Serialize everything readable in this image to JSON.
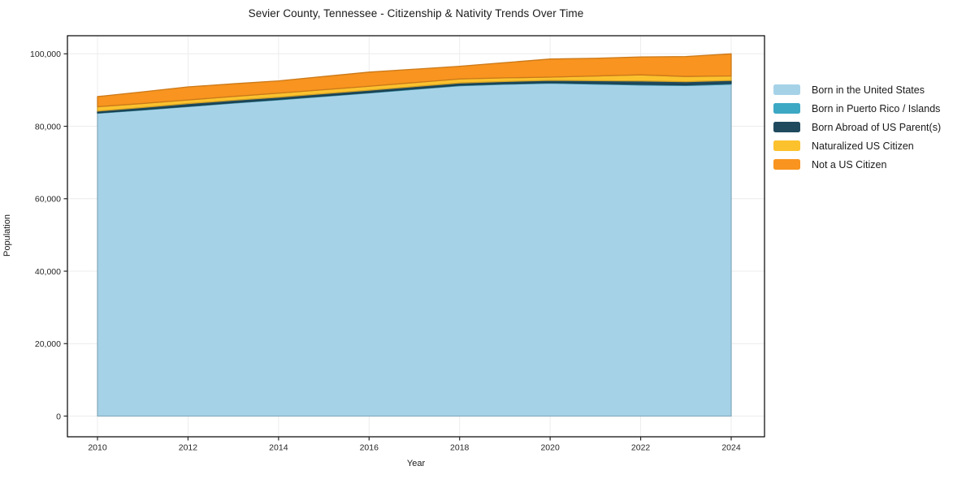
{
  "title": "Sevier County, Tennessee - Citizenship & Nativity Trends Over Time",
  "axes": {
    "x_label": "Year",
    "y_label": "Population",
    "x_ticks": [
      2010,
      2012,
      2014,
      2016,
      2018,
      2020,
      2022,
      2024
    ],
    "y_ticks": [
      0,
      20000,
      40000,
      60000,
      80000,
      100000
    ]
  },
  "colors": {
    "grid": "#ececec",
    "axis_frame": "#000000",
    "tick": "#262626"
  },
  "chart_data": {
    "type": "area",
    "stacked": true,
    "title": "Sevier County, Tennessee - Citizenship & Nativity Trends Over Time",
    "xlabel": "Year",
    "ylabel": "Population",
    "xlim": [
      2010,
      2024
    ],
    "ylim": [
      0,
      105000
    ],
    "grid": true,
    "legend_position": "right",
    "x": [
      2010,
      2011,
      2012,
      2013,
      2014,
      2015,
      2016,
      2017,
      2018,
      2019,
      2020,
      2021,
      2022,
      2023,
      2024
    ],
    "series": [
      {
        "name": "Born in the United States",
        "color": "#a6d2e8",
        "values": [
          83600,
          84500,
          85450,
          86400,
          87300,
          88250,
          89200,
          90200,
          91200,
          91600,
          91900,
          91650,
          91400,
          91250,
          91600
        ]
      },
      {
        "name": "Born in Puerto Rico / Islands",
        "color": "#3da8c4",
        "values": [
          100,
          100,
          120,
          130,
          140,
          150,
          150,
          160,
          160,
          170,
          170,
          180,
          200,
          200,
          250
        ]
      },
      {
        "name": "Born Abroad of US Parent(s)",
        "color": "#1f4a5e",
        "values": [
          500,
          600,
          700,
          650,
          600,
          600,
          600,
          600,
          600,
          600,
          600,
          750,
          900,
          850,
          800
        ]
      },
      {
        "name": "Naturalized US Citizen",
        "color": "#fcc22e",
        "values": [
          1200,
          1100,
          1000,
          1050,
          1100,
          1100,
          1100,
          1100,
          1100,
          1000,
          900,
          1300,
          1700,
          1450,
          1250
        ]
      },
      {
        "name": "Not a US Citizen",
        "color": "#f8941f",
        "values": [
          2800,
          3200,
          3600,
          3500,
          3400,
          3650,
          3900,
          3700,
          3500,
          4200,
          5000,
          4900,
          4950,
          5500,
          6100
        ]
      }
    ]
  }
}
